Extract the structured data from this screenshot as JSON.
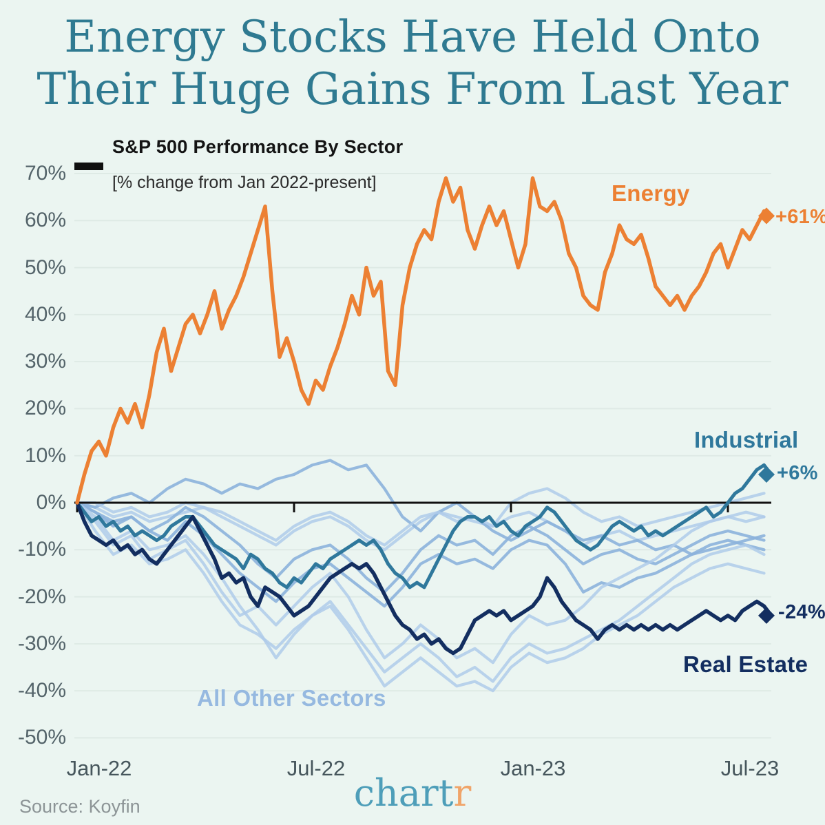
{
  "title": {
    "line1": "Energy Stocks Have Held Onto",
    "line2": "Their Huge Gains From Last Year",
    "color": "#2F7A91"
  },
  "legend": {
    "heading": "S&P 500 Performance By Sector",
    "subheading": "[% change from Jan 2022-present]",
    "key_dash_color": "#101010"
  },
  "footer": {
    "source": "Source: Koyfin",
    "logo_teal": "chart",
    "logo_orange": "r",
    "logo_teal_color": "#4E9EB9",
    "logo_orange_color": "#F0A469"
  },
  "colors": {
    "background": "#EBF5F1",
    "gridline": "#DEEAE5",
    "zero_line": "#101010",
    "energy": "#EC8033",
    "industrial": "#2F789C",
    "real_estate": "#132E60",
    "others_pale": "#AFCBEA",
    "others_medium": "#8CB2DC",
    "others_label": "#96B9E0"
  },
  "chart_data": {
    "type": "line",
    "title": "S&P 500 Performance By Sector",
    "subtitle": "[% change from Jan 2022-present]",
    "xlabel": "",
    "ylabel": "% change from Jan 2022",
    "x_unit": "months since Jan-2022",
    "x_tick_labels": [
      "Jan-22",
      "Jul-22",
      "Jan-23",
      "Jul-23"
    ],
    "x_tick_months": [
      0,
      6,
      12,
      18
    ],
    "ylim": [
      -50,
      70
    ],
    "y_ticks": [
      70,
      60,
      50,
      40,
      30,
      20,
      10,
      0,
      -10,
      -20,
      -30,
      -40,
      -50
    ],
    "y_tick_suffix": "%",
    "grid": "horizontal faint lines, black zero baseline with month ticks",
    "legend_position": "labels drawn next to lines",
    "series": [
      {
        "name": "Energy",
        "color": "#EC8033",
        "width": 5.5,
        "end_label": "+61%",
        "end_value": 61,
        "x_start": 0,
        "x_step": 0.2,
        "values": [
          0,
          6,
          11,
          13,
          10,
          16,
          20,
          17,
          21,
          16,
          23,
          32,
          37,
          28,
          33,
          38,
          40,
          36,
          40,
          45,
          37,
          41,
          44,
          48,
          53,
          58,
          63,
          45,
          31,
          35,
          30,
          24,
          21,
          26,
          24,
          29,
          33,
          38,
          44,
          40,
          50,
          44,
          47,
          28,
          25,
          42,
          50,
          55,
          58,
          56,
          64,
          69,
          64,
          67,
          58,
          54,
          59,
          63,
          59,
          62,
          56,
          50,
          55,
          69,
          63,
          62,
          64,
          60,
          53,
          50,
          44,
          42,
          41,
          49,
          53,
          59,
          56,
          55,
          57,
          52,
          46,
          44,
          42,
          44,
          41,
          44,
          46,
          49,
          53,
          55,
          50,
          54,
          58,
          56,
          59,
          62,
          61
        ]
      },
      {
        "name": "Industrial",
        "color": "#2F789C",
        "width": 5,
        "end_label": "+6%",
        "end_value": 6,
        "x_start": 0,
        "x_step": 0.2,
        "values": [
          0,
          -2,
          -4,
          -3,
          -5,
          -4,
          -6,
          -5,
          -7,
          -6,
          -7,
          -8,
          -7,
          -5,
          -4,
          -3,
          -3,
          -5,
          -7,
          -9,
          -10,
          -11,
          -12,
          -14,
          -11,
          -12,
          -14,
          -15,
          -17,
          -18,
          -16,
          -17,
          -15,
          -13,
          -14,
          -12,
          -11,
          -10,
          -9,
          -8,
          -9,
          -8,
          -10,
          -13,
          -15,
          -16,
          -18,
          -17,
          -18,
          -15,
          -12,
          -9,
          -6,
          -4,
          -3,
          -3,
          -4,
          -3,
          -5,
          -4,
          -6,
          -7,
          -5,
          -4,
          -3,
          -1,
          -2,
          -4,
          -6,
          -8,
          -9,
          -10,
          -9,
          -7,
          -5,
          -4,
          -5,
          -6,
          -5,
          -7,
          -6,
          -7,
          -6,
          -5,
          -4,
          -3,
          -2,
          -1,
          -3,
          -2,
          0,
          2,
          3,
          5,
          7,
          8,
          6
        ]
      },
      {
        "name": "Real Estate",
        "color": "#132E60",
        "width": 5.5,
        "end_label": "-24%",
        "end_value": -24,
        "x_start": 0,
        "x_step": 0.2,
        "values": [
          0,
          -4,
          -7,
          -8,
          -9,
          -8,
          -10,
          -9,
          -11,
          -10,
          -12,
          -13,
          -11,
          -9,
          -7,
          -5,
          -3,
          -6,
          -9,
          -12,
          -16,
          -15,
          -17,
          -16,
          -20,
          -22,
          -18,
          -19,
          -20,
          -22,
          -24,
          -23,
          -22,
          -20,
          -18,
          -16,
          -15,
          -14,
          -13,
          -14,
          -13,
          -15,
          -18,
          -21,
          -24,
          -26,
          -27,
          -29,
          -28,
          -30,
          -29,
          -31,
          -32,
          -31,
          -28,
          -25,
          -24,
          -23,
          -24,
          -23,
          -25,
          -24,
          -23,
          -22,
          -20,
          -16,
          -18,
          -21,
          -23,
          -25,
          -26,
          -27,
          -29,
          -27,
          -26,
          -27,
          -26,
          -27,
          -26,
          -27,
          -26,
          -27,
          -26,
          -27,
          -26,
          -25,
          -24,
          -23,
          -24,
          -25,
          -24,
          -25,
          -23,
          -22,
          -21,
          -22,
          -24
        ]
      },
      {
        "name": "All Other Sectors",
        "note": "8 unlabeled S&P sector lines shown in light blue",
        "color": "#AFCBEA",
        "width": 4.2,
        "x_start": 0,
        "x_step": 0.5,
        "lines": [
          {
            "shade": "pale",
            "values": [
              0,
              -1,
              -3,
              -2,
              -4,
              -3,
              -2,
              -1,
              -3,
              -5,
              -7,
              -9,
              -6,
              -4,
              -3,
              -5,
              -8,
              -10,
              -7,
              -4,
              -2,
              -3,
              -4,
              -5,
              -3,
              -2,
              -4,
              -6,
              -9,
              -7,
              -6,
              -8,
              -7,
              -6,
              -5,
              -4,
              -3,
              -4,
              -3
            ]
          },
          {
            "shade": "medium",
            "values": [
              0,
              -1,
              1,
              2,
              0,
              3,
              5,
              4,
              2,
              4,
              3,
              5,
              6,
              8,
              9,
              7,
              8,
              3,
              -3,
              -6,
              -2,
              0,
              -3,
              -6,
              -8,
              -6,
              -4,
              -6,
              -8,
              -7,
              -9,
              -8,
              -10,
              -9,
              -11,
              -10,
              -9,
              -8,
              -7
            ]
          },
          {
            "shade": "pale",
            "values": [
              0,
              0,
              -2,
              -1,
              -3,
              -2,
              0,
              -1,
              -2,
              -4,
              -6,
              -8,
              -5,
              -3,
              -2,
              -4,
              -7,
              -9,
              -6,
              -3,
              -2,
              -4,
              -3,
              -5,
              0,
              2,
              3,
              1,
              -2,
              -4,
              -3,
              -5,
              -4,
              -3,
              -2,
              -1,
              0,
              1,
              2
            ]
          },
          {
            "shade": "medium",
            "values": [
              0,
              -2,
              -5,
              -3,
              -6,
              -4,
              -1,
              -3,
              -6,
              -9,
              -13,
              -16,
              -12,
              -10,
              -9,
              -12,
              -16,
              -19,
              -15,
              -10,
              -7,
              -9,
              -8,
              -11,
              -7,
              -5,
              -7,
              -10,
              -13,
              -11,
              -10,
              -12,
              -13,
              -11,
              -9,
              -7,
              -6,
              -7,
              -8
            ]
          },
          {
            "shade": "medium",
            "values": [
              0,
              -2,
              -4,
              -3,
              -6,
              -8,
              -4,
              -7,
              -11,
              -15,
              -18,
              -21,
              -17,
              -14,
              -13,
              -16,
              -19,
              -22,
              -18,
              -13,
              -11,
              -13,
              -12,
              -14,
              -10,
              -8,
              -9,
              -13,
              -19,
              -17,
              -18,
              -16,
              -15,
              -13,
              -11,
              -9,
              -8,
              -9,
              -10
            ]
          },
          {
            "shade": "pale",
            "values": [
              0,
              -3,
              -8,
              -6,
              -10,
              -9,
              -7,
              -11,
              -16,
              -22,
              -27,
              -33,
              -28,
              -24,
              -21,
              -26,
              -31,
              -36,
              -33,
              -30,
              -33,
              -37,
              -35,
              -38,
              -33,
              -30,
              -32,
              -31,
              -29,
              -27,
              -25,
              -22,
              -19,
              -16,
              -13,
              -11,
              -10,
              -9,
              -11
            ]
          },
          {
            "shade": "pale",
            "values": [
              0,
              -4,
              -9,
              -7,
              -12,
              -10,
              -8,
              -13,
              -19,
              -24,
              -22,
              -26,
              -22,
              -18,
              -15,
              -20,
              -27,
              -33,
              -30,
              -26,
              -29,
              -33,
              -31,
              -34,
              -28,
              -24,
              -26,
              -25,
              -22,
              -18,
              -16,
              -14,
              -12,
              -9,
              -6,
              -4,
              -3,
              -2,
              -3
            ]
          },
          {
            "shade": "pale",
            "values": [
              0,
              -6,
              -11,
              -9,
              -13,
              -12,
              -10,
              -15,
              -21,
              -26,
              -28,
              -31,
              -27,
              -24,
              -22,
              -27,
              -33,
              -39,
              -36,
              -33,
              -36,
              -39,
              -38,
              -40,
              -35,
              -32,
              -34,
              -33,
              -31,
              -28,
              -26,
              -24,
              -21,
              -18,
              -16,
              -14,
              -13,
              -14,
              -15
            ]
          }
        ]
      }
    ],
    "annotations": [
      {
        "text": "Energy",
        "color": "#EC8033"
      },
      {
        "text": "+61%",
        "marker": "diamond",
        "color": "#EC8033"
      },
      {
        "text": "Industrial",
        "color": "#2F789C"
      },
      {
        "text": "+6%",
        "marker": "diamond",
        "color": "#2F789C"
      },
      {
        "text": "-24%",
        "marker": "diamond",
        "color": "#132E60"
      },
      {
        "text": "Real Estate",
        "color": "#132E60"
      },
      {
        "text": "All Other Sectors",
        "color": "#96B9E0"
      }
    ]
  }
}
